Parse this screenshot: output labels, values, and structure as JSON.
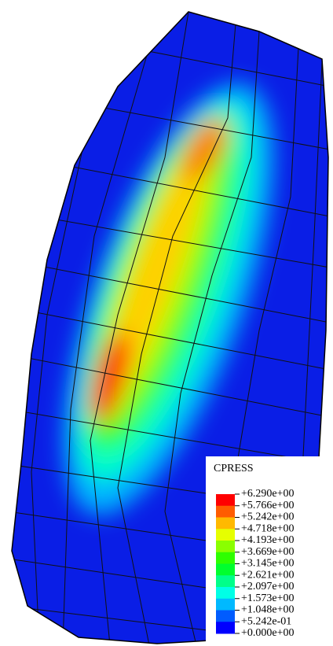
{
  "legend": {
    "title": "CPRESS",
    "labels": [
      "+6.290e+00",
      "+5.766e+00",
      "+5.242e+00",
      "+4.718e+00",
      "+4.193e+00",
      "+3.669e+00",
      "+3.145e+00",
      "+2.621e+00",
      "+2.097e+00",
      "+1.573e+00",
      "+1.048e+00",
      "+5.242e-01",
      "+0.000e+00"
    ],
    "colors": [
      "#ff0000",
      "#ff5c00",
      "#ffb900",
      "#e6ff00",
      "#8aff00",
      "#2eff00",
      "#00ff2e",
      "#00ff8a",
      "#00ffe6",
      "#00b9ff",
      "#005cff",
      "#0000ff"
    ]
  }
}
